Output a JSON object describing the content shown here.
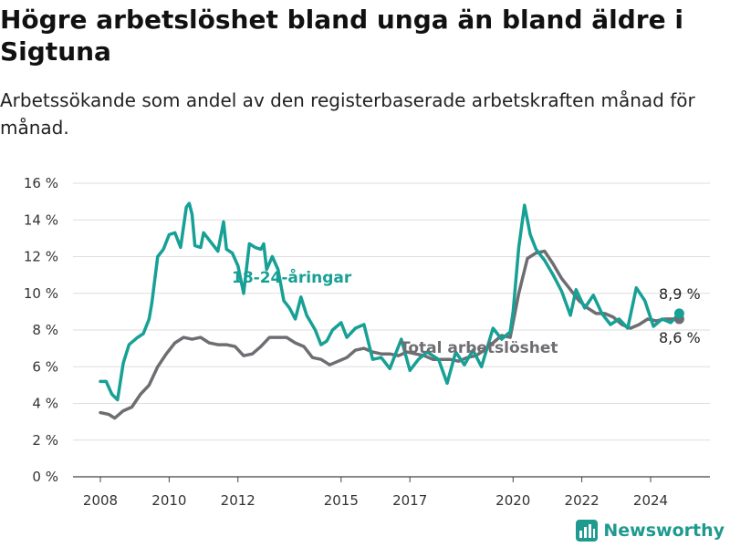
{
  "chart_data": {
    "type": "line",
    "title": "Högre arbetslöshet bland unga än bland äldre i Sigtuna",
    "subtitle": "Arbetssökande som andel av den registerbaserade arbetskraften månad för månad.",
    "y_ticks": [
      "0 %",
      "2 %",
      "4 %",
      "6 %",
      "8 %",
      "10 %",
      "12 %",
      "14 %",
      "16 %"
    ],
    "x_ticks": [
      "2008",
      "2010",
      "2012",
      "2015",
      "2017",
      "2020",
      "2022",
      "2024"
    ],
    "ylim": [
      0,
      16
    ],
    "grid": true,
    "colors": {
      "youth": "#17a095",
      "total": "#6e6e72"
    },
    "series": [
      {
        "name": "18-24-åringar",
        "color": "#17a095",
        "end_label": "8,9 %",
        "points": [
          [
            "2008-01",
            5.2
          ],
          [
            "2008-03",
            5.2
          ],
          [
            "2008-05",
            4.5
          ],
          [
            "2008-07",
            4.2
          ],
          [
            "2008-09",
            6.2
          ],
          [
            "2008-11",
            7.2
          ],
          [
            "2009-02",
            7.6
          ],
          [
            "2009-04",
            7.8
          ],
          [
            "2009-06",
            8.6
          ],
          [
            "2009-07",
            9.5
          ],
          [
            "2009-09",
            12.0
          ],
          [
            "2009-11",
            12.4
          ],
          [
            "2010-01",
            13.2
          ],
          [
            "2010-03",
            13.3
          ],
          [
            "2010-05",
            12.5
          ],
          [
            "2010-07",
            14.7
          ],
          [
            "2010-08",
            14.9
          ],
          [
            "2010-09",
            14.3
          ],
          [
            "2010-10",
            12.6
          ],
          [
            "2010-12",
            12.5
          ],
          [
            "2011-01",
            13.3
          ],
          [
            "2011-04",
            12.7
          ],
          [
            "2011-06",
            12.3
          ],
          [
            "2011-08",
            13.9
          ],
          [
            "2011-09",
            12.4
          ],
          [
            "2011-11",
            12.2
          ],
          [
            "2012-01",
            11.5
          ],
          [
            "2012-03",
            10.0
          ],
          [
            "2012-05",
            12.7
          ],
          [
            "2012-07",
            12.5
          ],
          [
            "2012-09",
            12.4
          ],
          [
            "2012-10",
            12.7
          ],
          [
            "2012-11",
            11.3
          ],
          [
            "2013-01",
            12.0
          ],
          [
            "2013-03",
            11.3
          ],
          [
            "2013-05",
            9.6
          ],
          [
            "2013-07",
            9.2
          ],
          [
            "2013-09",
            8.6
          ],
          [
            "2013-11",
            9.8
          ],
          [
            "2014-01",
            8.8
          ],
          [
            "2014-04",
            8.0
          ],
          [
            "2014-06",
            7.2
          ],
          [
            "2014-08",
            7.4
          ],
          [
            "2014-10",
            8.0
          ],
          [
            "2015-01",
            8.4
          ],
          [
            "2015-03",
            7.6
          ],
          [
            "2015-06",
            8.1
          ],
          [
            "2015-09",
            8.3
          ],
          [
            "2015-12",
            6.4
          ],
          [
            "2016-03",
            6.5
          ],
          [
            "2016-06",
            5.9
          ],
          [
            "2016-10",
            7.5
          ],
          [
            "2017-01",
            5.8
          ],
          [
            "2017-04",
            6.4
          ],
          [
            "2017-07",
            6.8
          ],
          [
            "2017-11",
            6.4
          ],
          [
            "2018-02",
            5.1
          ],
          [
            "2018-05",
            6.8
          ],
          [
            "2018-08",
            6.1
          ],
          [
            "2018-11",
            6.9
          ],
          [
            "2019-02",
            6.0
          ],
          [
            "2019-06",
            8.1
          ],
          [
            "2019-09",
            7.5
          ],
          [
            "2019-12",
            7.9
          ],
          [
            "2020-01",
            9.0
          ],
          [
            "2020-03",
            12.5
          ],
          [
            "2020-05",
            14.8
          ],
          [
            "2020-07",
            13.2
          ],
          [
            "2020-09",
            12.4
          ],
          [
            "2020-12",
            11.8
          ],
          [
            "2021-03",
            11.0
          ],
          [
            "2021-06",
            10.1
          ],
          [
            "2021-09",
            8.8
          ],
          [
            "2021-11",
            10.2
          ],
          [
            "2022-02",
            9.2
          ],
          [
            "2022-05",
            9.9
          ],
          [
            "2022-08",
            8.9
          ],
          [
            "2022-11",
            8.3
          ],
          [
            "2023-02",
            8.6
          ],
          [
            "2023-05",
            8.1
          ],
          [
            "2023-08",
            10.3
          ],
          [
            "2023-11",
            9.6
          ],
          [
            "2024-02",
            8.2
          ],
          [
            "2024-05",
            8.6
          ],
          [
            "2024-08",
            8.4
          ],
          [
            "2024-11",
            8.9
          ]
        ]
      },
      {
        "name": "Total arbetslöshet",
        "color": "#6e6e72",
        "end_label": "8,6 %",
        "points": [
          [
            "2008-01",
            3.5
          ],
          [
            "2008-04",
            3.4
          ],
          [
            "2008-06",
            3.2
          ],
          [
            "2008-09",
            3.6
          ],
          [
            "2008-12",
            3.8
          ],
          [
            "2009-03",
            4.5
          ],
          [
            "2009-06",
            5.0
          ],
          [
            "2009-09",
            6.0
          ],
          [
            "2009-12",
            6.7
          ],
          [
            "2010-03",
            7.3
          ],
          [
            "2010-06",
            7.6
          ],
          [
            "2010-09",
            7.5
          ],
          [
            "2010-12",
            7.6
          ],
          [
            "2011-03",
            7.3
          ],
          [
            "2011-06",
            7.2
          ],
          [
            "2011-09",
            7.2
          ],
          [
            "2011-12",
            7.1
          ],
          [
            "2012-03",
            6.6
          ],
          [
            "2012-06",
            6.7
          ],
          [
            "2012-09",
            7.1
          ],
          [
            "2012-12",
            7.6
          ],
          [
            "2013-03",
            7.6
          ],
          [
            "2013-06",
            7.6
          ],
          [
            "2013-09",
            7.3
          ],
          [
            "2013-12",
            7.1
          ],
          [
            "2014-03",
            6.5
          ],
          [
            "2014-06",
            6.4
          ],
          [
            "2014-09",
            6.1
          ],
          [
            "2014-12",
            6.3
          ],
          [
            "2015-03",
            6.5
          ],
          [
            "2015-06",
            6.9
          ],
          [
            "2015-09",
            7.0
          ],
          [
            "2015-12",
            6.8
          ],
          [
            "2016-03",
            6.7
          ],
          [
            "2016-06",
            6.7
          ],
          [
            "2016-09",
            6.6
          ],
          [
            "2016-12",
            6.8
          ],
          [
            "2017-03",
            6.7
          ],
          [
            "2017-06",
            6.6
          ],
          [
            "2017-09",
            6.4
          ],
          [
            "2017-12",
            6.4
          ],
          [
            "2018-03",
            6.4
          ],
          [
            "2018-06",
            6.3
          ],
          [
            "2018-09",
            6.5
          ],
          [
            "2018-12",
            6.6
          ],
          [
            "2019-03",
            6.9
          ],
          [
            "2019-06",
            7.3
          ],
          [
            "2019-09",
            7.7
          ],
          [
            "2019-12",
            7.6
          ],
          [
            "2020-03",
            10.0
          ],
          [
            "2020-06",
            11.9
          ],
          [
            "2020-09",
            12.2
          ],
          [
            "2020-12",
            12.3
          ],
          [
            "2021-03",
            11.6
          ],
          [
            "2021-06",
            10.8
          ],
          [
            "2021-09",
            10.2
          ],
          [
            "2021-12",
            9.6
          ],
          [
            "2022-03",
            9.2
          ],
          [
            "2022-06",
            8.9
          ],
          [
            "2022-09",
            8.9
          ],
          [
            "2022-12",
            8.7
          ],
          [
            "2023-03",
            8.3
          ],
          [
            "2023-06",
            8.1
          ],
          [
            "2023-09",
            8.3
          ],
          [
            "2023-12",
            8.6
          ],
          [
            "2024-03",
            8.5
          ],
          [
            "2024-06",
            8.6
          ],
          [
            "2024-11",
            8.6
          ]
        ]
      }
    ]
  },
  "brand": {
    "name": "Newsworthy"
  }
}
